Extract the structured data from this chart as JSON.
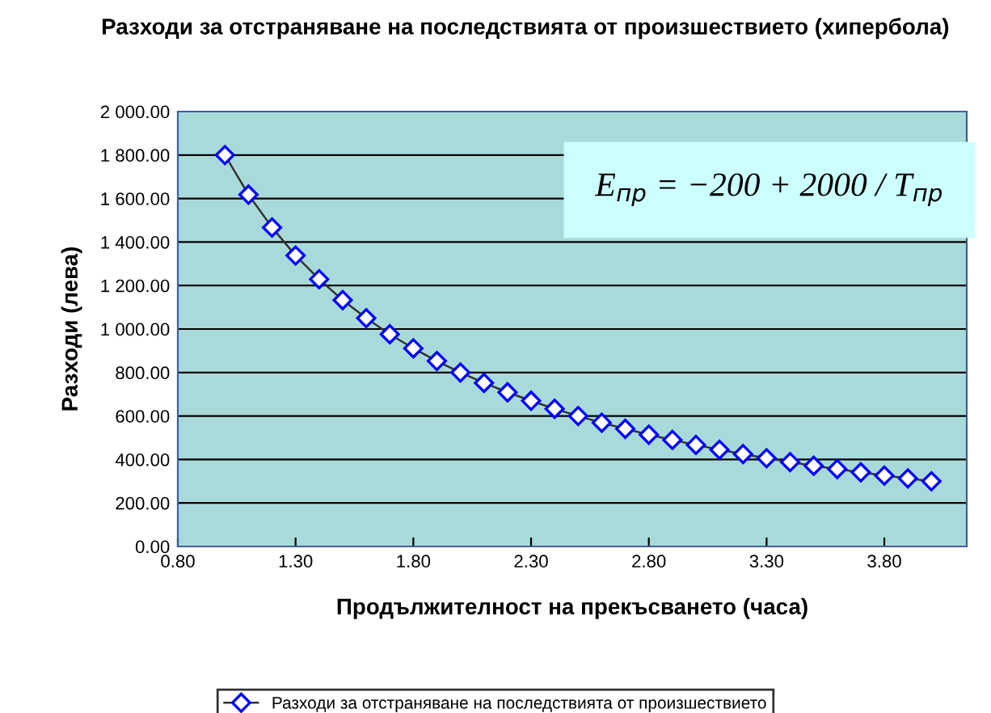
{
  "chart_data": {
    "type": "line",
    "title": "Разходи за отстраняване на последствията от произшествието (хипербола)",
    "xlabel": "Продължителност на прекъсването (часа)",
    "ylabel": "Разходи (лева)",
    "annotations": [
      "E$_{пр}$ = −200 + 2000 / T$_{пр}$"
    ],
    "series": [
      {
        "name": "Разходи за отстраняване на последствията от произшествието",
        "color": "#0000ff",
        "x": [
          1.0,
          1.1,
          1.2,
          1.3,
          1.4,
          1.5,
          1.6,
          1.7,
          1.8,
          1.9,
          2.0,
          2.1,
          2.2,
          2.3,
          2.4,
          2.5,
          2.6,
          2.7,
          2.8,
          2.9,
          3.0,
          3.1,
          3.2,
          3.3,
          3.4,
          3.5,
          3.6,
          3.7,
          3.8,
          3.9,
          4.0
        ],
        "values": [
          1800,
          1618,
          1467,
          1338,
          1229,
          1133,
          1050,
          976,
          911,
          853,
          800,
          752,
          709,
          670,
          633,
          600,
          569,
          541,
          514,
          490,
          467,
          445,
          425,
          406,
          388,
          371,
          356,
          341,
          326,
          313,
          300
        ]
      }
    ],
    "xlim": [
      0.8,
      4.15
    ],
    "xticks": [
      {
        "value": 0.8,
        "label": "0.80"
      },
      {
        "value": 1.3,
        "label": "1.30"
      },
      {
        "value": 1.8,
        "label": "1.80"
      },
      {
        "value": 2.3,
        "label": "2.30"
      },
      {
        "value": 2.8,
        "label": "2.80"
      },
      {
        "value": 3.3,
        "label": "3.30"
      },
      {
        "value": 3.8,
        "label": "3.80"
      }
    ],
    "ylim": [
      0,
      2000
    ],
    "yticks": [
      {
        "value": 0,
        "label": "0.00"
      },
      {
        "value": 200,
        "label": "200.00"
      },
      {
        "value": 400,
        "label": "400.00"
      },
      {
        "value": 600,
        "label": "600.00"
      },
      {
        "value": 800,
        "label": "800.00"
      },
      {
        "value": 1000,
        "label": "1 000.00"
      },
      {
        "value": 1200,
        "label": "1 200.00"
      },
      {
        "value": 1400,
        "label": "1 400.00"
      },
      {
        "value": 1600,
        "label": "1 600.00"
      },
      {
        "value": 1800,
        "label": "1 800.00"
      },
      {
        "value": 2000,
        "label": "2 000.00"
      }
    ],
    "grid": "y",
    "legend": "bottom",
    "marker": "diamond",
    "line_style": "solid"
  }
}
